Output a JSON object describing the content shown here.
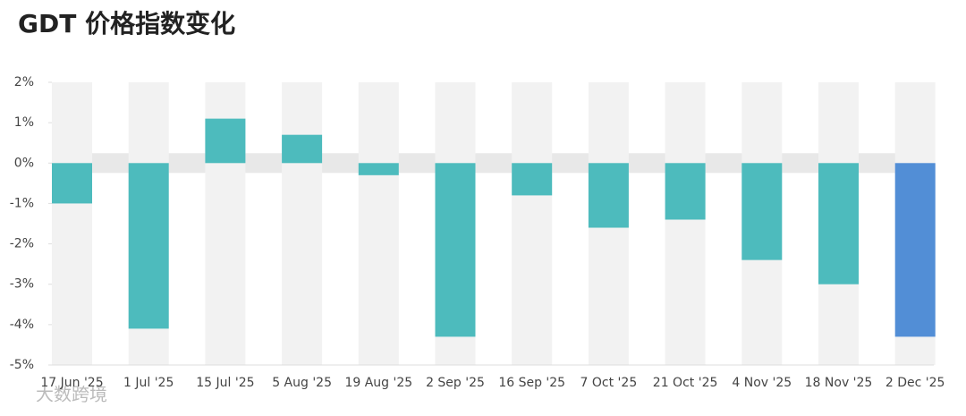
{
  "chart_data": {
    "type": "bar",
    "title": "GDT 价格指数变化",
    "watermark": "大数跨境",
    "categories": [
      "17 Jun '25",
      "1 Jul '25",
      "15 Jul '25",
      "5 Aug '25",
      "19 Aug '25",
      "2 Sep '25",
      "16 Sep '25",
      "7 Oct '25",
      "21 Oct '25",
      "4 Nov '25",
      "18 Nov '25",
      "2 Dec '25"
    ],
    "values": [
      -1.0,
      -4.1,
      1.1,
      0.7,
      -0.3,
      -4.3,
      -0.8,
      -1.6,
      -1.4,
      -2.4,
      -3.0,
      -4.3
    ],
    "colors": [
      "#4dbbbd",
      "#4dbbbd",
      "#4dbbbd",
      "#4dbbbd",
      "#4dbbbd",
      "#4dbbbd",
      "#4dbbbd",
      "#4dbbbd",
      "#4dbbbd",
      "#4dbbbd",
      "#4dbbbd",
      "#528ed6"
    ],
    "ylim": [
      -5,
      2
    ],
    "yticks": [
      {
        "value": -5,
        "label": "-5%"
      },
      {
        "value": -4,
        "label": "-4%"
      },
      {
        "value": -3,
        "label": "-3%"
      },
      {
        "value": -2,
        "label": "-2%"
      },
      {
        "value": -1,
        "label": "-1%"
      },
      {
        "value": 0,
        "label": "0%"
      },
      {
        "value": 1,
        "label": "1%"
      },
      {
        "value": 2,
        "label": "2%"
      }
    ]
  }
}
